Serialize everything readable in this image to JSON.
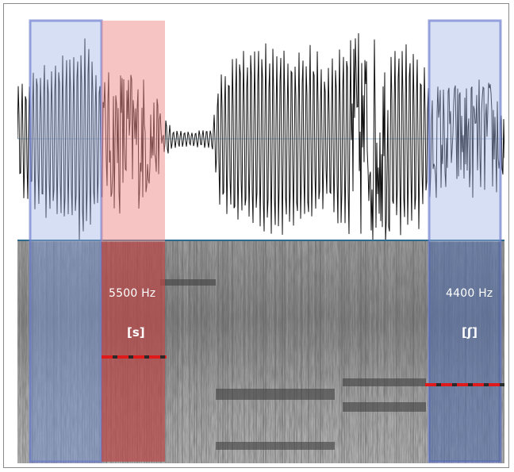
{
  "figure": {
    "description_colors": {
      "waveform": "#111111",
      "blue_highlight": "#9fb3e6",
      "red_highlight": "#f08a8a",
      "divider": "#2e6b8f",
      "marker_red": "#e0191b",
      "marker_dark": "#2a2a2a"
    },
    "left_segment": {
      "frequency_label": "5500 Hz",
      "phoneme_label": "[s]"
    },
    "right_segment": {
      "frequency_label": "4400 Hz",
      "phoneme_label": "[ʃ]"
    }
  }
}
